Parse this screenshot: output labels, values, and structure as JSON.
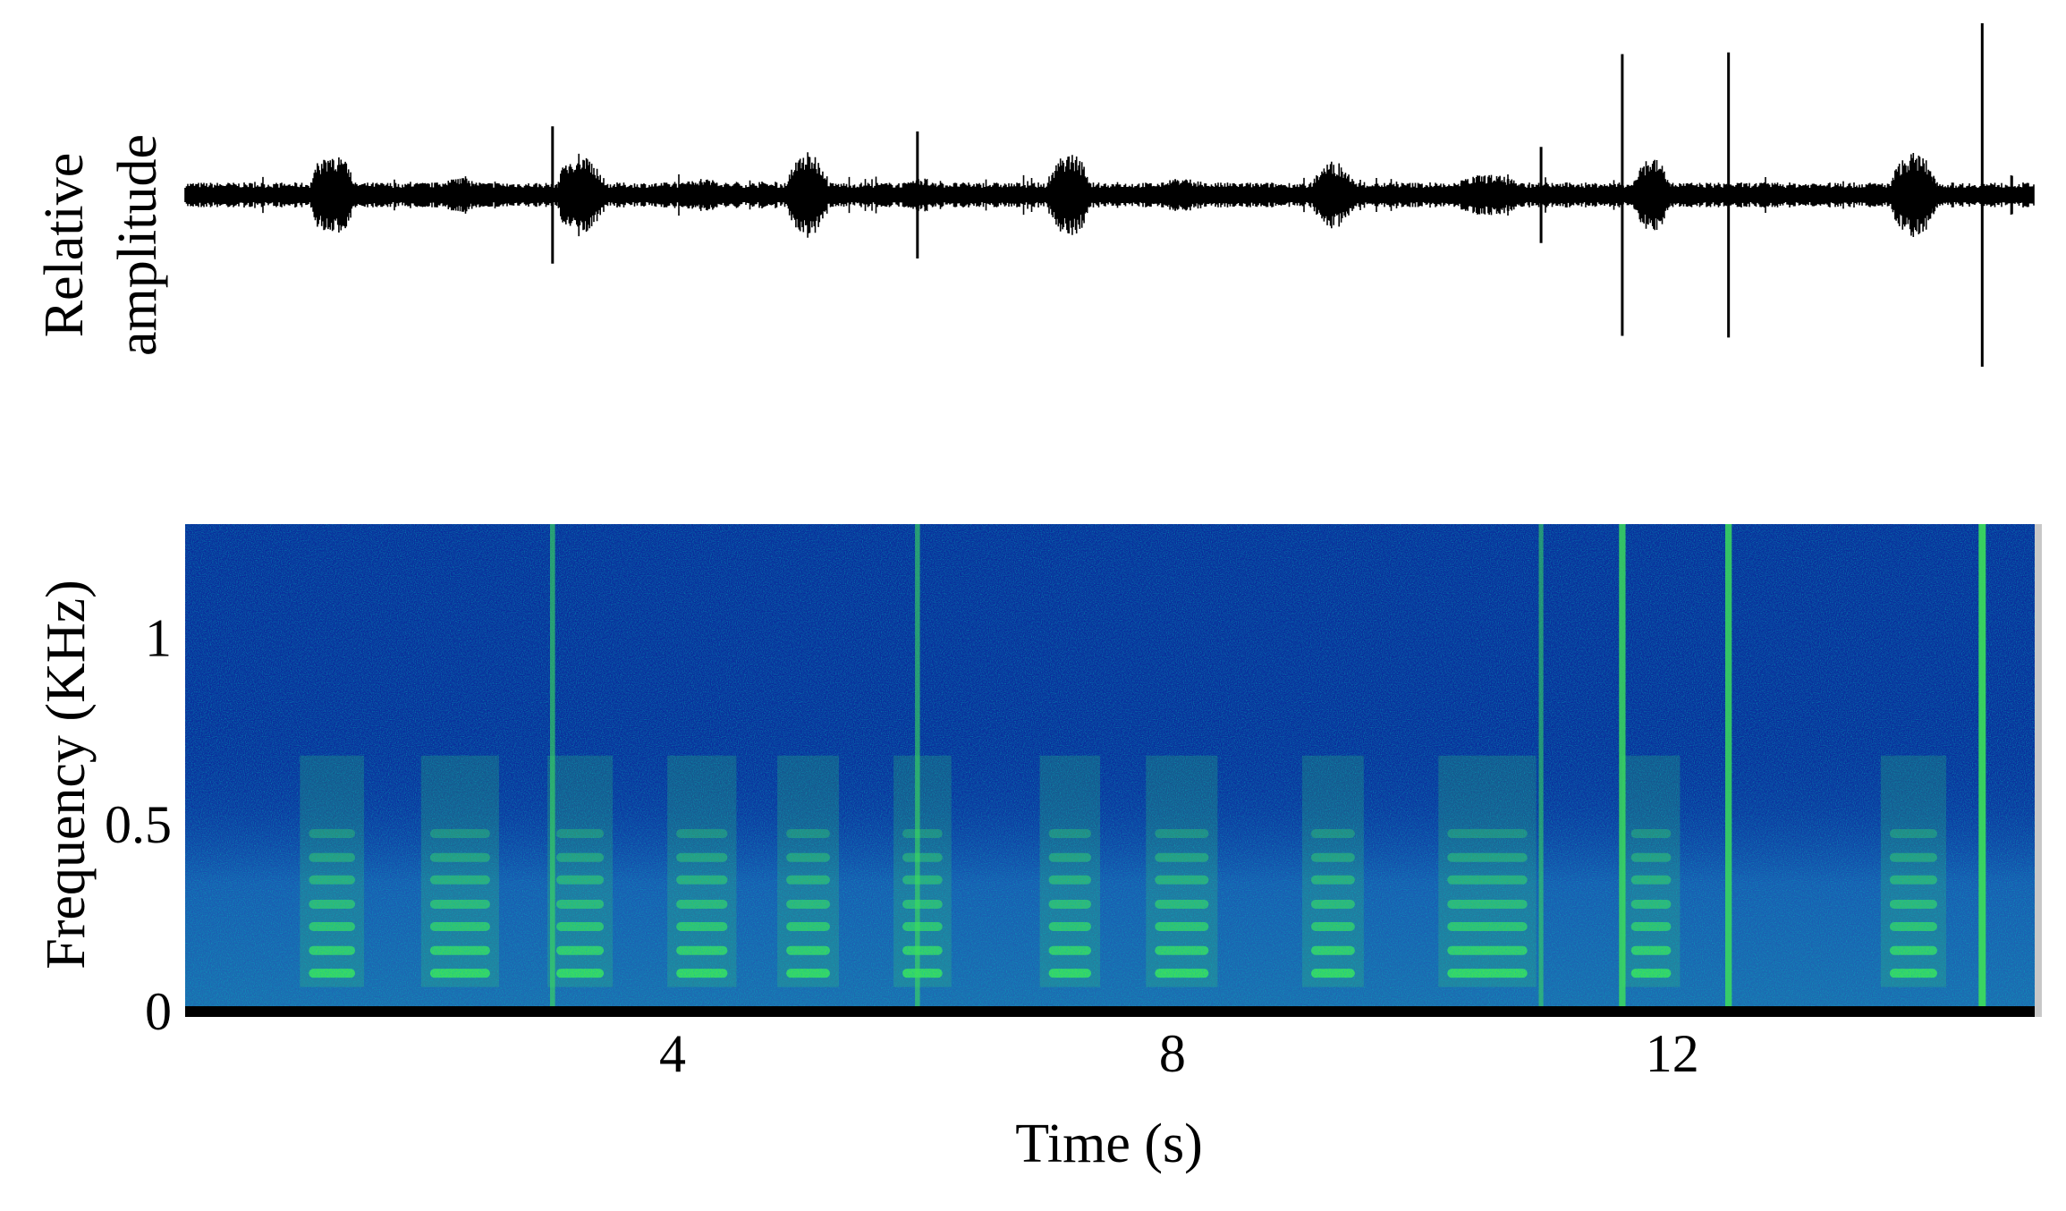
{
  "chart_data": [
    {
      "type": "waveform",
      "ylabel": [
        "Relative",
        "amplitude"
      ],
      "xlim": [
        0.1,
        14.9
      ],
      "ylim": [
        -1,
        1
      ],
      "color": "#000000",
      "calls": [
        {
          "start": 1.09,
          "end": 1.46,
          "amp": 0.25
        },
        {
          "start": 2.06,
          "end": 2.54,
          "amp": 0.1
        },
        {
          "start": 3.07,
          "end": 3.45,
          "amp": 0.25
        },
        {
          "start": 4.03,
          "end": 4.44,
          "amp": 0.1
        },
        {
          "start": 4.91,
          "end": 5.26,
          "amp": 0.25
        },
        {
          "start": 5.84,
          "end": 6.16,
          "amp": 0.1
        },
        {
          "start": 7.01,
          "end": 7.35,
          "amp": 0.25
        },
        {
          "start": 7.86,
          "end": 8.29,
          "amp": 0.1
        },
        {
          "start": 9.11,
          "end": 9.46,
          "amp": 0.2
        },
        {
          "start": 10.2,
          "end": 10.84,
          "amp": 0.12
        },
        {
          "start": 11.67,
          "end": 11.99,
          "amp": 0.22
        },
        {
          "start": 13.74,
          "end": 14.12,
          "amp": 0.25
        }
      ],
      "clicks": [
        {
          "time": 3.04,
          "amp": 0.4
        },
        {
          "time": 5.96,
          "amp": 0.37
        },
        {
          "time": 10.95,
          "amp": 0.28
        },
        {
          "time": 11.6,
          "amp": 0.82
        },
        {
          "time": 12.45,
          "amp": 0.83
        },
        {
          "time": 14.48,
          "amp": 1.0
        }
      ]
    },
    {
      "type": "spectrogram",
      "xlabel": "Time (s)",
      "ylabel": "Frequency (KHz)",
      "xlim": [
        0.1,
        14.9
      ],
      "ylim": [
        0,
        1.32
      ],
      "xticks": [
        4,
        8,
        12
      ],
      "yticks": [
        0,
        0.5,
        1
      ],
      "harmonics": [
        0.117,
        0.178,
        0.242,
        0.302,
        0.367,
        0.427,
        0.491
      ],
      "background": "#0a2a9a",
      "band_color": "#3ee05a"
    }
  ]
}
